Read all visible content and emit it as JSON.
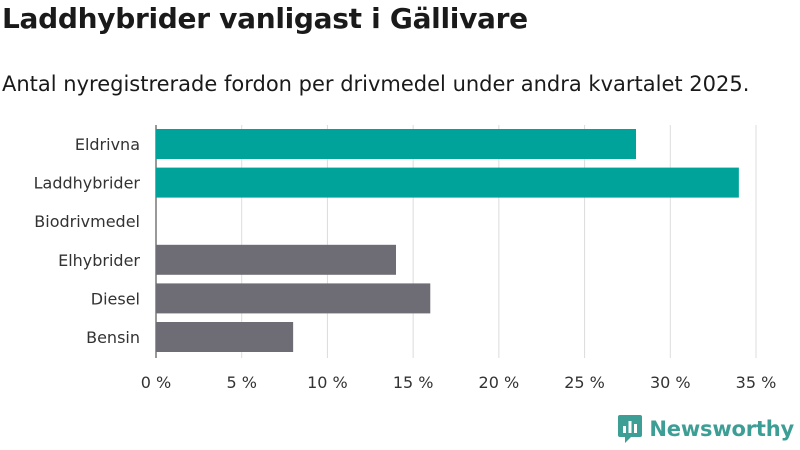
{
  "title": "Laddhybrider vanligast i Gällivare",
  "subtitle": "Antal nyregistrerade fordon per drivmedel under andra kvartalet 2025.",
  "brand": {
    "name": "Newsworthy",
    "icon": "newsworthy-logo-icon",
    "color": "#3d9e95"
  },
  "chart_data": {
    "type": "bar",
    "orientation": "horizontal",
    "categories": [
      "Eldrivna",
      "Laddhybrider",
      "Biodrivmedel",
      "Elhybrider",
      "Diesel",
      "Bensin"
    ],
    "values": [
      28,
      34,
      0,
      14,
      16,
      8
    ],
    "colors": [
      "#00a39a",
      "#00a39a",
      "#00a39a",
      "#6e6d75",
      "#6e6d75",
      "#6e6d75"
    ],
    "xlim": [
      0,
      35
    ],
    "xticks": [
      0,
      5,
      10,
      15,
      20,
      25,
      30,
      35
    ],
    "tick_suffix": " %",
    "grid": true
  }
}
